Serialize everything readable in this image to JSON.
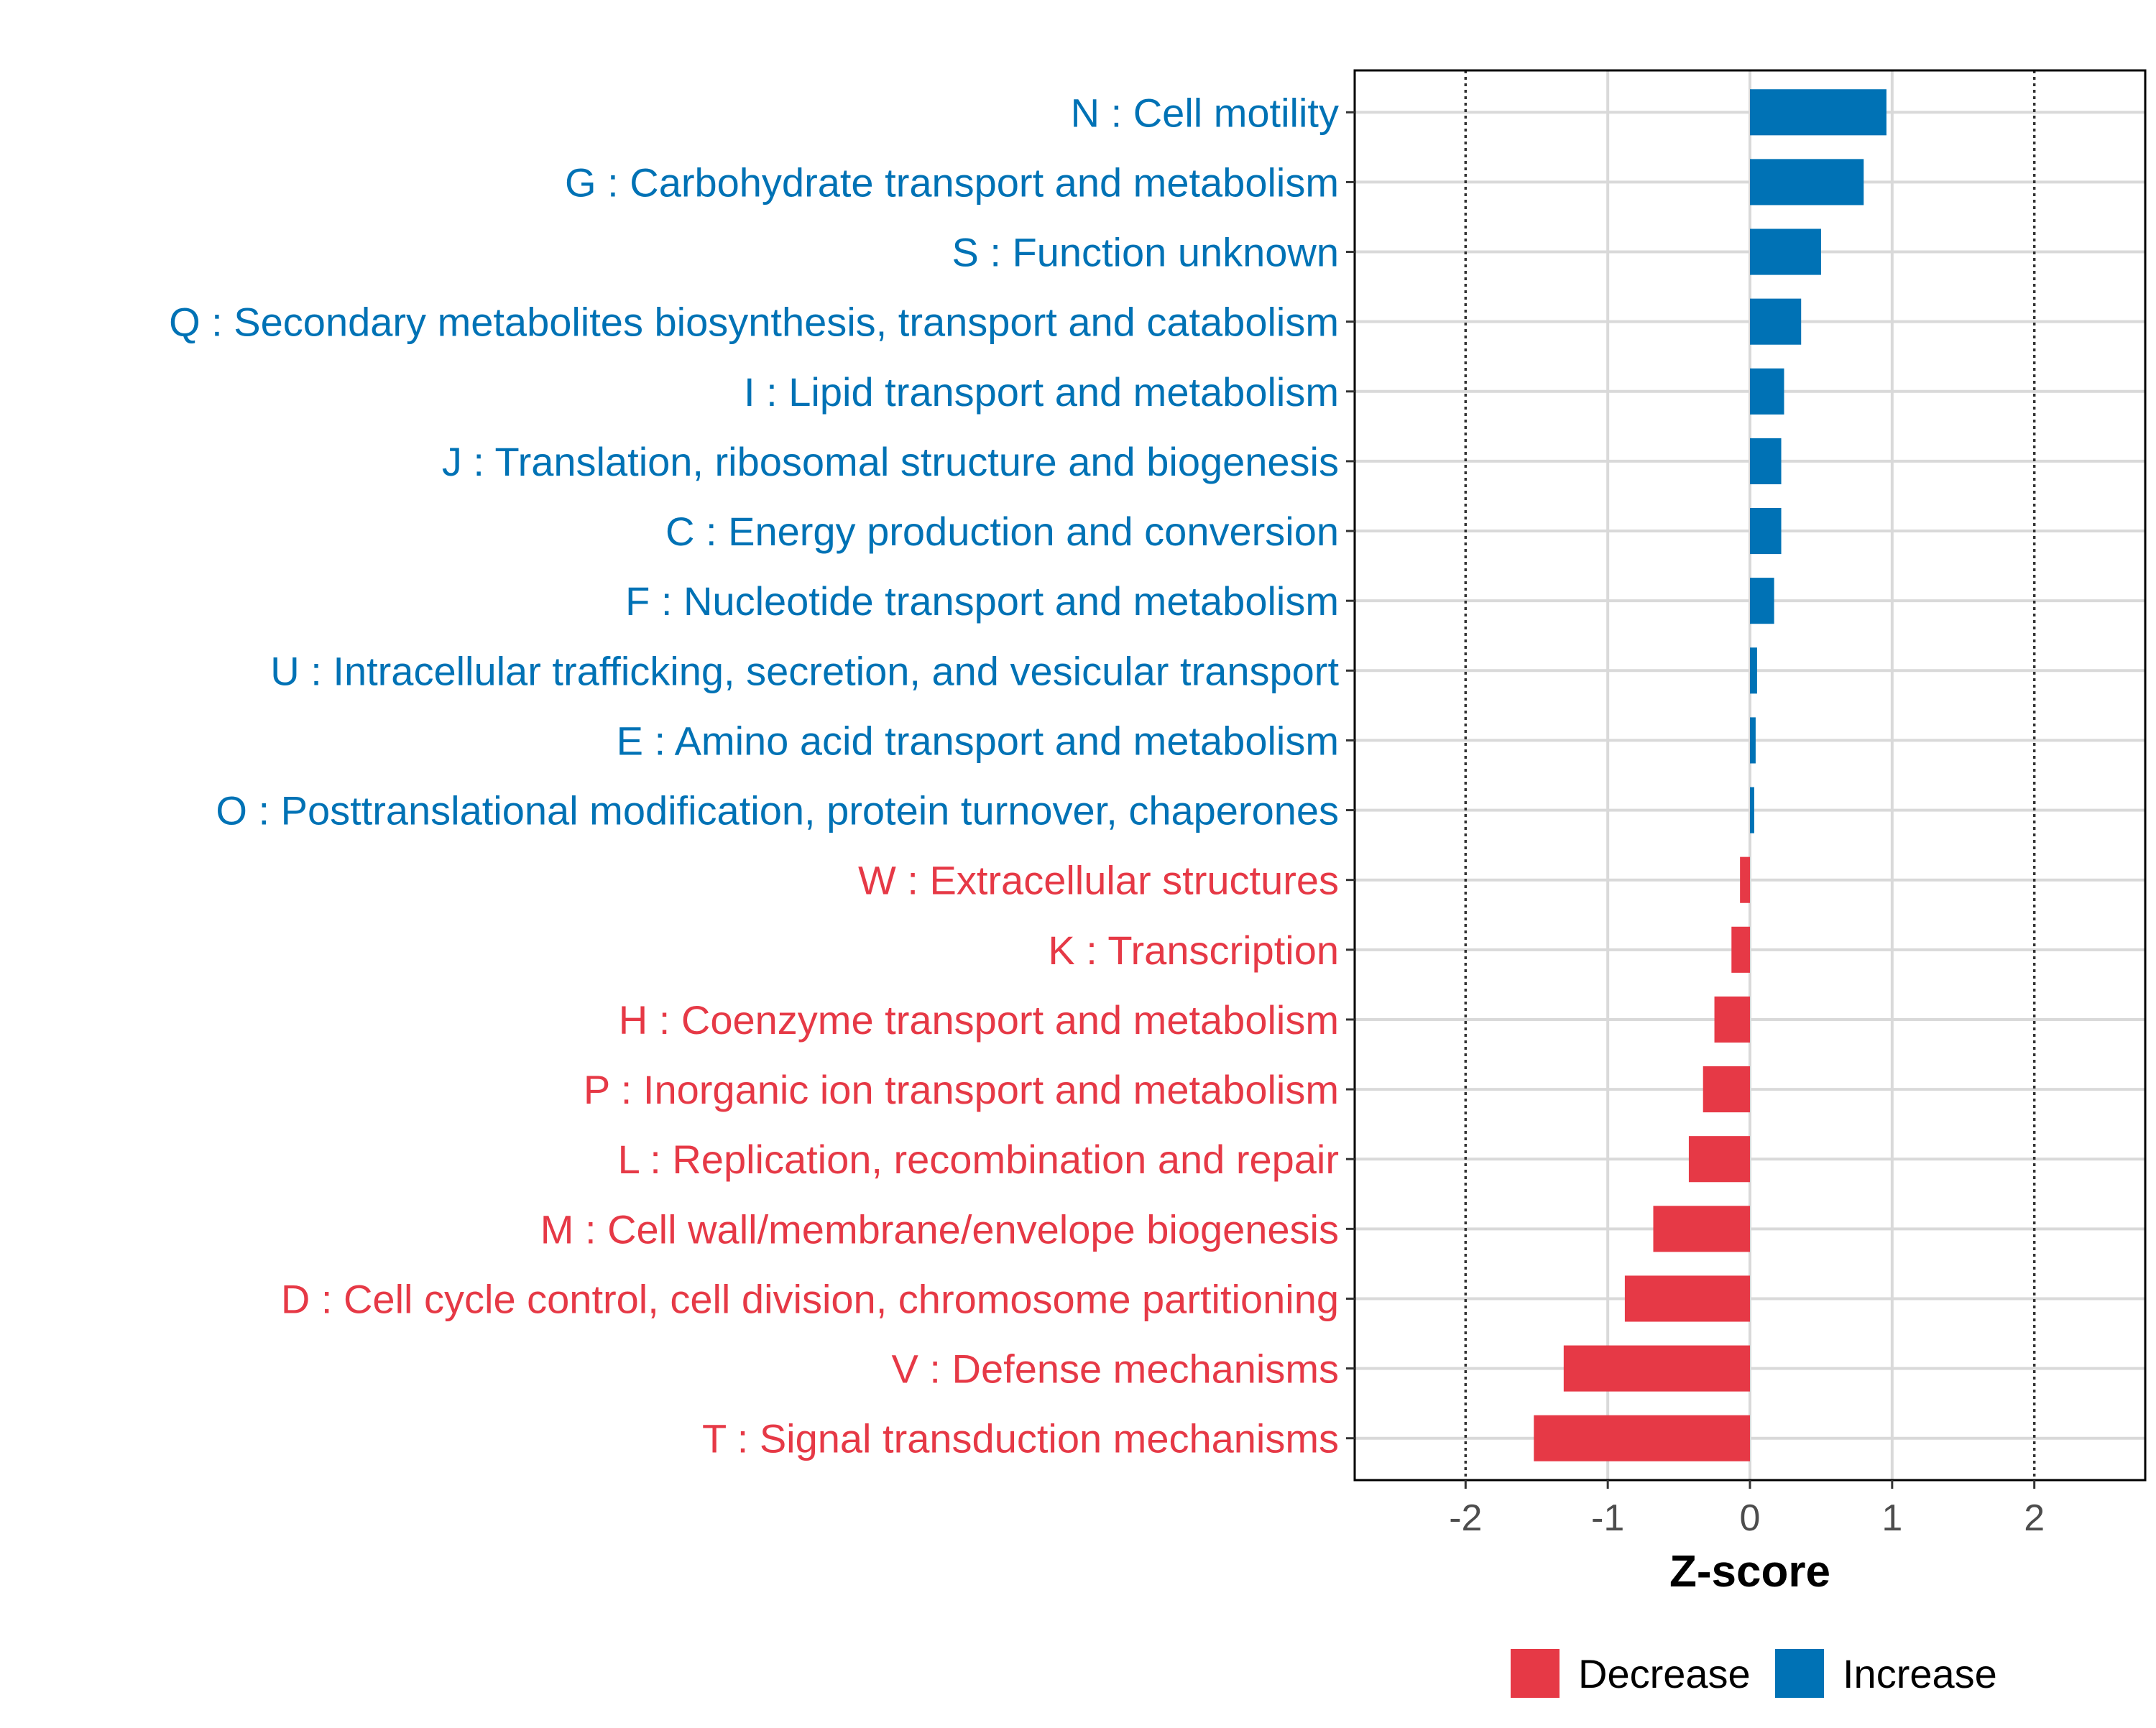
{
  "chart_data": {
    "type": "bar",
    "orientation": "horizontal",
    "title": "",
    "xlabel": "Z-score",
    "ylabel": "",
    "xlim": [
      -2.78,
      2.78
    ],
    "xticks": [
      -2,
      -1,
      0,
      1,
      2
    ],
    "xtick_labels": [
      "-2",
      "-1",
      "0",
      "1",
      "2"
    ],
    "reference_lines": [
      -2,
      2
    ],
    "grid": true,
    "colors": {
      "Increase": "#0072B5",
      "Decrease": "#E63946",
      "grid": "#D9D9D9",
      "tick_text": "#4D4D4D"
    },
    "legend": {
      "position": "bottom",
      "entries": [
        {
          "label": "Decrease",
          "color": "#E63946"
        },
        {
          "label": "Increase",
          "color": "#0072B5"
        }
      ]
    },
    "categories": [
      "N : Cell motility",
      "G : Carbohydrate transport and metabolism",
      "S : Function unknown",
      "Q : Secondary metabolites biosynthesis, transport and catabolism",
      "I : Lipid transport and metabolism",
      "J : Translation, ribosomal structure and biogenesis",
      "C : Energy production and conversion",
      "F : Nucleotide transport and metabolism",
      "U : Intracellular trafficking, secretion, and vesicular transport",
      "E : Amino acid transport and metabolism",
      "O : Posttranslational modification, protein turnover, chaperones",
      "W : Extracellular structures",
      "K : Transcription",
      "H : Coenzyme transport and metabolism",
      "P : Inorganic ion transport and metabolism",
      "L : Replication, recombination and repair",
      "M : Cell wall/membrane/envelope biogenesis",
      "D : Cell cycle control, cell division, chromosome partitioning",
      "V : Defense mechanisms",
      "T : Signal transduction mechanisms"
    ],
    "values": [
      0.96,
      0.8,
      0.5,
      0.36,
      0.24,
      0.22,
      0.22,
      0.17,
      0.05,
      0.04,
      0.03,
      -0.07,
      -0.13,
      -0.25,
      -0.33,
      -0.43,
      -0.68,
      -0.88,
      -1.31,
      -1.52
    ],
    "groups": [
      "Increase",
      "Increase",
      "Increase",
      "Increase",
      "Increase",
      "Increase",
      "Increase",
      "Increase",
      "Increase",
      "Increase",
      "Increase",
      "Decrease",
      "Decrease",
      "Decrease",
      "Decrease",
      "Decrease",
      "Decrease",
      "Decrease",
      "Decrease",
      "Decrease"
    ]
  }
}
